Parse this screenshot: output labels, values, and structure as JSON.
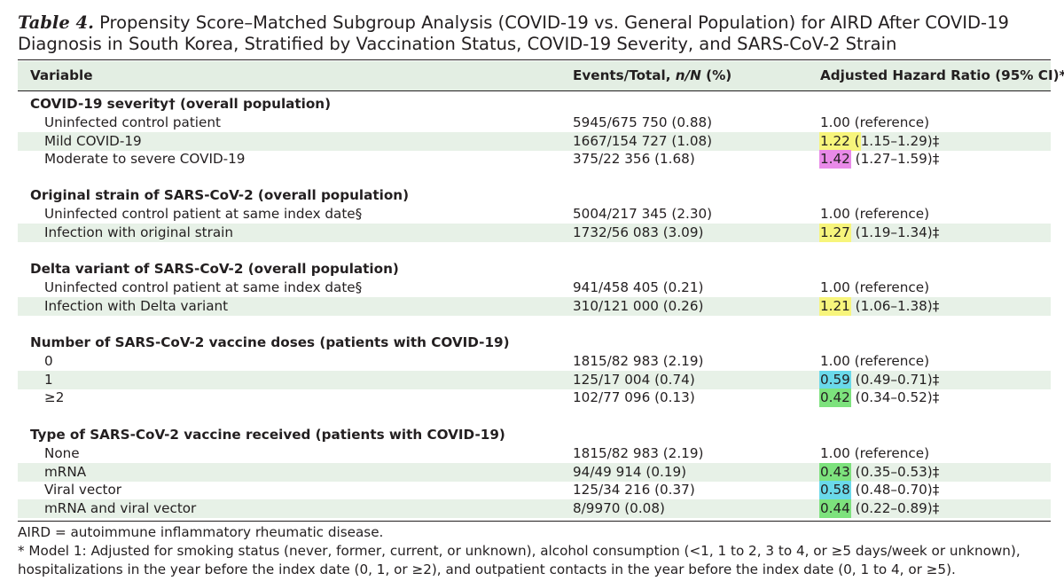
{
  "table_number": "Table 4.",
  "title": "Propensity Score–Matched Subgroup Analysis (COVID-19 vs. General Population) for AIRD After COVID-19 Diagnosis in South Korea, Stratified by Vaccination Status, COVID-19 Severity, and SARS-CoV-2 Strain",
  "header": {
    "variable": "Variable",
    "events_prefix": "Events/Total, ",
    "events_italic": "n/N",
    "events_suffix": " (%)",
    "hr": "Adjusted Hazard Ratio (95% CI)*"
  },
  "sections": [
    {
      "title": "COVID-19 severity† (overall population)",
      "rows": [
        {
          "label": "Uninfected control patient",
          "events": "5945/675 750 (0.88)",
          "hr_point": "1.00",
          "hr_rest": " (reference)",
          "highlight": ""
        },
        {
          "label": "Mild COVID-19",
          "events": "1667/154 727 (1.08)",
          "hr_point": "1.22 (",
          "hr_rest": "1.15–1.29)‡",
          "highlight": "yellow"
        },
        {
          "label": "Moderate to severe COVID-19",
          "events": "375/22 356 (1.68)",
          "hr_point": "1.42",
          "hr_rest": " (1.27–1.59)‡",
          "highlight": "magenta"
        }
      ]
    },
    {
      "title": "Original strain of SARS-CoV-2 (overall population)",
      "rows": [
        {
          "label": "Uninfected control patient at same index date§",
          "events": "5004/217 345 (2.30)",
          "hr_point": "1.00",
          "hr_rest": " (reference)",
          "highlight": ""
        },
        {
          "label": "Infection with original strain",
          "events": "1732/56 083 (3.09)",
          "hr_point": "1.27",
          "hr_rest": " (1.19–1.34)‡",
          "highlight": "yellow"
        }
      ]
    },
    {
      "title": "Delta variant of SARS-CoV-2 (overall population)",
      "rows": [
        {
          "label": "Uninfected control patient at same index date§",
          "events": "941/458 405 (0.21)",
          "hr_point": "1.00",
          "hr_rest": " (reference)",
          "highlight": ""
        },
        {
          "label": "Infection with Delta variant",
          "events": "310/121 000 (0.26)",
          "hr_point": "1.21",
          "hr_rest": " (1.06–1.38)‡",
          "highlight": "yellow"
        }
      ]
    },
    {
      "title": "Number of SARS-CoV-2 vaccine doses (patients with COVID-19)",
      "rows": [
        {
          "label": "0",
          "events": "1815/82 983 (2.19)",
          "hr_point": "1.00",
          "hr_rest": " (reference)",
          "highlight": ""
        },
        {
          "label": "1",
          "events": "125/17 004 (0.74)",
          "hr_point": "0.59",
          "hr_rest": " (0.49–0.71)‡",
          "highlight": "cyan"
        },
        {
          "label": "≥2",
          "events": "102/77 096 (0.13)",
          "hr_point": "0.42",
          "hr_rest": " (0.34–0.52)‡",
          "highlight": "green"
        }
      ]
    },
    {
      "title": "Type of SARS-CoV-2 vaccine received (patients with COVID-19)",
      "rows": [
        {
          "label": "None",
          "events": "1815/82 983 (2.19)",
          "hr_point": "1.00",
          "hr_rest": " (reference)",
          "highlight": ""
        },
        {
          "label": "mRNA",
          "events": "94/49 914 (0.19)",
          "hr_point": "0.43",
          "hr_rest": " (0.35–0.53)‡",
          "highlight": "green"
        },
        {
          "label": "Viral vector",
          "events": "125/34 216 (0.37)",
          "hr_point": "0.58",
          "hr_rest": " (0.48–0.70)‡",
          "highlight": "cyan"
        },
        {
          "label": "mRNA and viral vector",
          "events": "8/9970 (0.08)",
          "hr_point": "0.44",
          "hr_rest": " (0.22–0.89)‡",
          "highlight": "green"
        }
      ]
    }
  ],
  "footnotes": [
    "AIRD = autoimmune inflammatory rheumatic disease.",
    "* Model 1: Adjusted for smoking status (never, former, current, or unknown), alcohol consumption (<1, 1 to 2, 3 to 4, or ≥5 days/week or unknown), hospitalizations in the year before the index date (0, 1, or ≥2), and outpatient contacts in the year before the index date (0, 1 to 4, or ≥5)."
  ]
}
